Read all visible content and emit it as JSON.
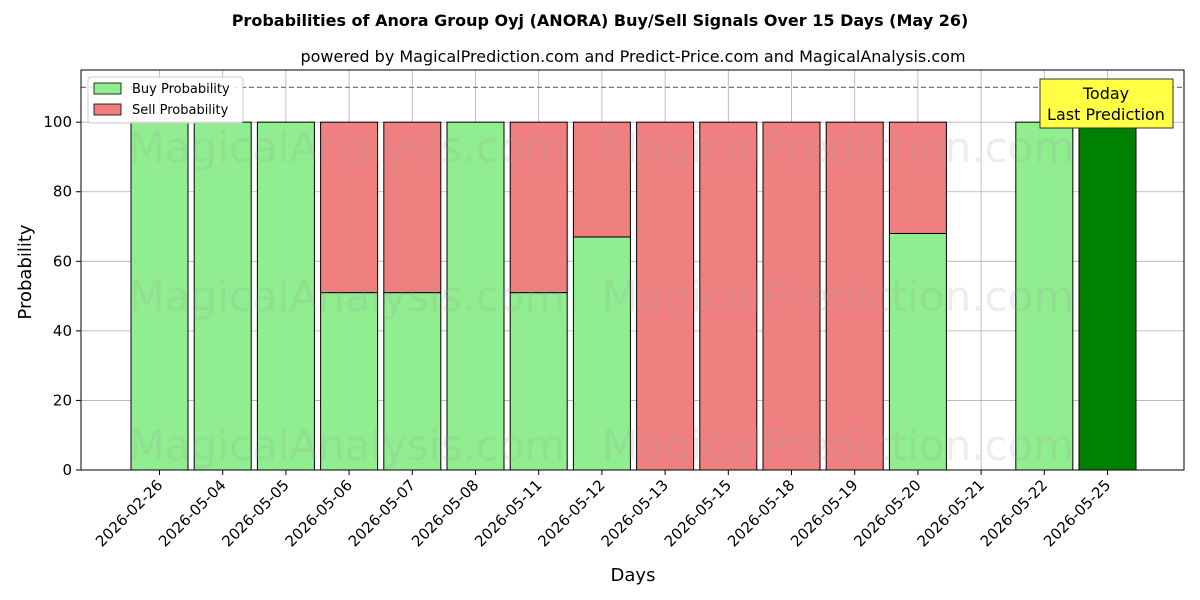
{
  "chart_data": {
    "type": "bar",
    "stacked": true,
    "title": "Probabilities of Anora Group Oyj (ANORA) Buy/Sell Signals Over 15 Days (May 26)",
    "subtitle": "powered by MagicalPrediction.com and Predict-Price.com and MagicalAnalysis.com",
    "xlabel": "Days",
    "ylabel": "Probability",
    "ylim": [
      0,
      115
    ],
    "yticks": [
      0,
      20,
      40,
      60,
      80,
      100
    ],
    "grid": true,
    "legend_position": "top-left",
    "threshold_line": 110,
    "categories": [
      "2026-02-26",
      "2026-05-04",
      "2026-05-05",
      "2026-05-06",
      "2026-05-07",
      "2026-05-08",
      "2026-05-11",
      "2026-05-12",
      "2026-05-13",
      "2026-05-15",
      "2026-05-18",
      "2026-05-19",
      "2026-05-20",
      "2026-05-21",
      "2026-05-22",
      "2026-05-25"
    ],
    "series": [
      {
        "name": "Buy Probability",
        "color": "#90ee90",
        "values": [
          100,
          100,
          100,
          51,
          51,
          100,
          51,
          67,
          0,
          0,
          0,
          0,
          68,
          0,
          100,
          100
        ]
      },
      {
        "name": "Sell Probability",
        "color": "#f08080",
        "values": [
          0,
          0,
          0,
          49,
          49,
          0,
          49,
          33,
          100,
          100,
          100,
          100,
          32,
          0,
          0,
          0
        ]
      }
    ],
    "highlight": {
      "index": 15,
      "color": "#008000"
    },
    "annotation": {
      "line1": "Today",
      "line2": "Last Prediction",
      "background": "#ffff44"
    },
    "watermarks": [
      "MagicalAnalysis.com",
      "MagicalPrediction.com"
    ]
  }
}
